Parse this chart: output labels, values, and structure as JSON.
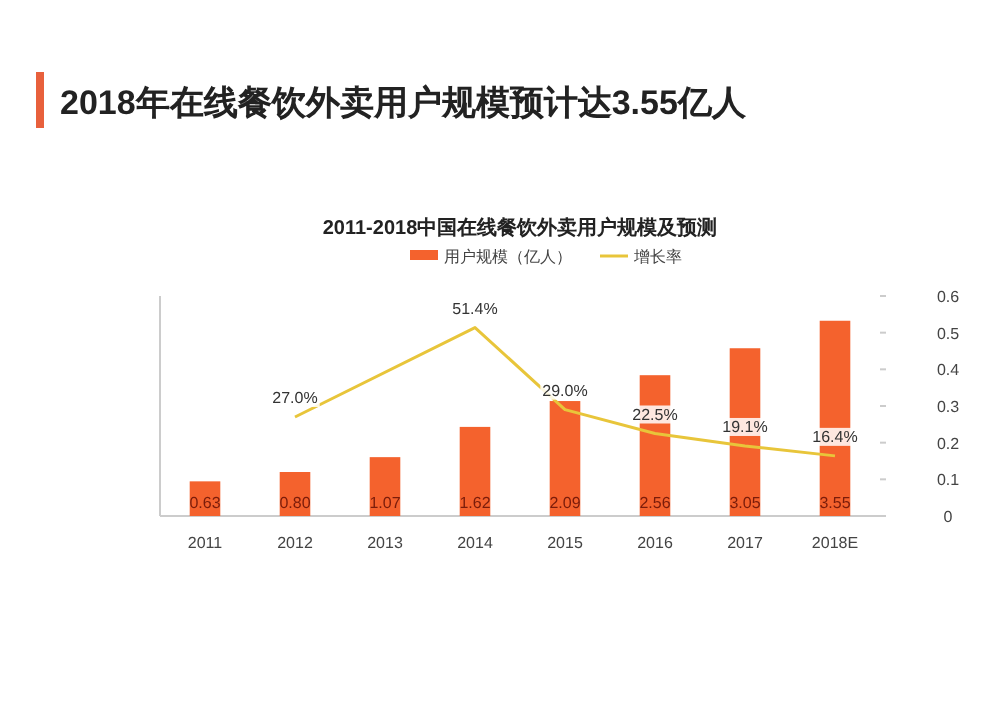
{
  "chart_data": {
    "type": "bar",
    "title": "2018年在线餐饮外卖用户规模预计达3.55亿人",
    "subtitle": "2011-2018中国在线餐饮外卖用户规模及预测",
    "categories": [
      "2011",
      "2012",
      "2013",
      "2014",
      "2015",
      "2016",
      "2017",
      "2018E"
    ],
    "series": [
      {
        "name": "用户规模（亿人）",
        "color": "#f4622d",
        "values": [
          0.63,
          0.8,
          1.07,
          1.62,
          2.09,
          2.56,
          3.05,
          3.55
        ],
        "value_labels": [
          "0.63",
          "0.80",
          "1.07",
          "1.62",
          "2.09",
          "2.56",
          "3.05",
          "3.55"
        ]
      },
      {
        "name": "增长率",
        "type": "line",
        "axis": "y2",
        "color": "#e8c53a",
        "values": [
          null,
          0.27,
          null,
          0.514,
          0.29,
          0.225,
          0.191,
          0.164
        ],
        "value_labels": [
          null,
          "27.0%",
          null,
          "51.4%",
          "29.0%",
          "22.5%",
          "19.1%",
          "16.4%"
        ]
      }
    ],
    "ylim": [
      0,
      4
    ],
    "y2lim": [
      0,
      0.6
    ],
    "y2ticks": [
      0,
      0.1,
      0.2,
      0.3,
      0.4,
      0.5,
      0.6
    ],
    "legend": "top",
    "grid": false
  }
}
